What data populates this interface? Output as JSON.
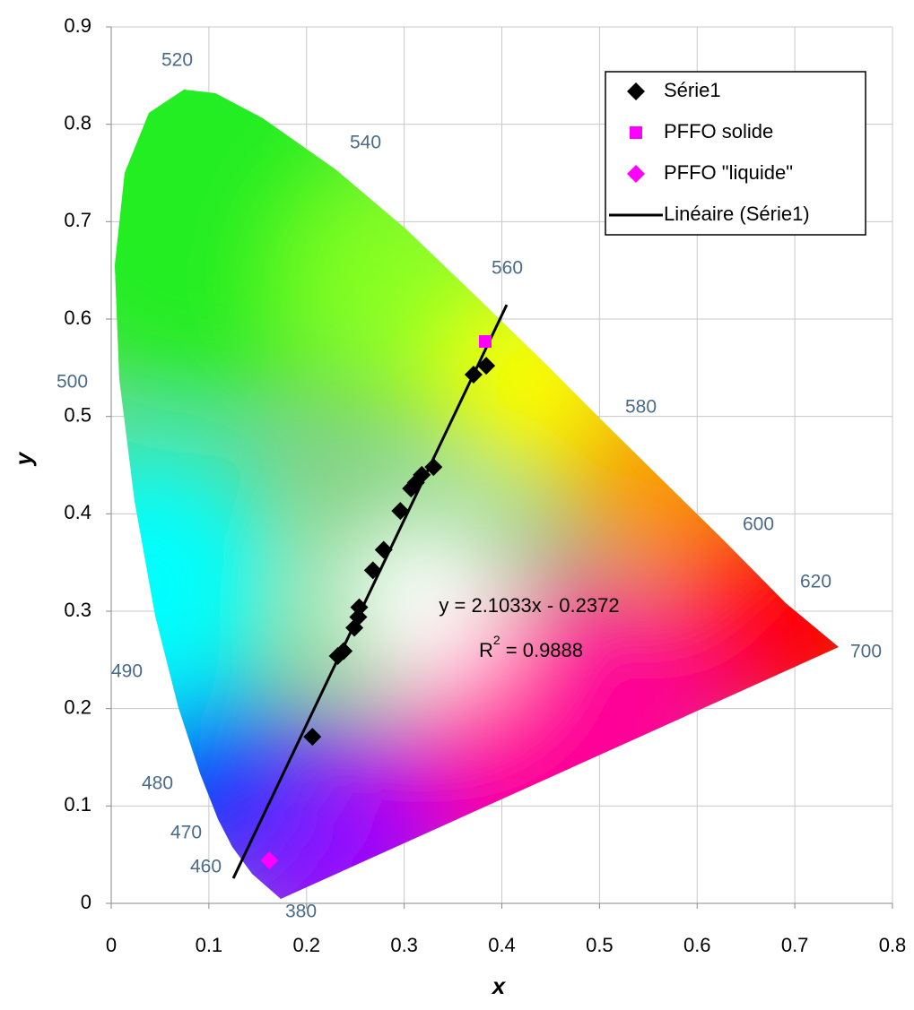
{
  "chart_data": {
    "type": "scatter",
    "xlabel": "x",
    "ylabel": "y",
    "xlim": [
      0,
      0.8
    ],
    "ylim": [
      0,
      0.9
    ],
    "xticks": [
      0,
      0.1,
      0.2,
      0.3,
      0.4,
      0.5,
      0.6,
      0.7,
      0.8
    ],
    "yticks": [
      0,
      0.1,
      0.2,
      0.3,
      0.4,
      0.5,
      0.6,
      0.7,
      0.8,
      0.9
    ],
    "grid": true,
    "legend": "upper right",
    "series": [
      {
        "name": "Série1",
        "color": "#000000",
        "marker": "diamond",
        "x": [
          0.206,
          0.232,
          0.238,
          0.249,
          0.253,
          0.254,
          0.268,
          0.279,
          0.296,
          0.307,
          0.312,
          0.318,
          0.33,
          0.371,
          0.384
        ],
        "values": [
          0.171,
          0.254,
          0.259,
          0.283,
          0.294,
          0.304,
          0.342,
          0.363,
          0.403,
          0.426,
          0.432,
          0.44,
          0.448,
          0.543,
          0.552
        ]
      },
      {
        "name": "PFFO solide",
        "color": "#ff00ff",
        "marker": "square",
        "x": [
          0.383
        ],
        "values": [
          0.577
        ]
      },
      {
        "name": "PFFO \"liquide\"",
        "color": "#ff00ff",
        "marker": "diamond",
        "x": [
          0.162
        ],
        "values": [
          0.044
        ]
      },
      {
        "name": "Linéaire (Série1)",
        "color": "#000000",
        "marker": "line",
        "x": [
          0.125,
          0.405
        ],
        "values": [
          0.0257,
          0.6146
        ]
      }
    ],
    "annotations": {
      "equation": "y = 2.1033x - 0.2372",
      "r_squared": {
        "base": "R",
        "sup": "2",
        "value": " = 0.9888"
      }
    },
    "wavelength_labels": [
      "520",
      "540",
      "560",
      "580",
      "600",
      "620",
      "700",
      "500",
      "490",
      "480",
      "470",
      "460",
      "380"
    ]
  }
}
